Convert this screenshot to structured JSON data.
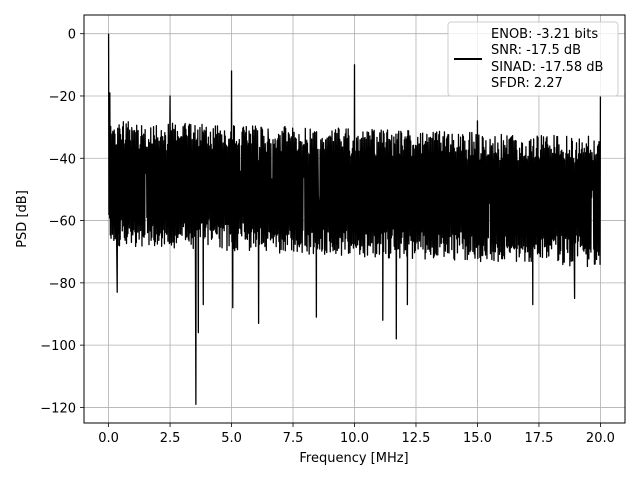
{
  "chart_data": {
    "type": "line",
    "title": "",
    "xlabel": "Frequency [MHz]",
    "ylabel": "PSD [dB]",
    "xlim": [
      -1.0,
      21.0
    ],
    "ylim": [
      -125,
      6
    ],
    "xticks": [
      0.0,
      2.5,
      5.0,
      7.5,
      10.0,
      12.5,
      15.0,
      17.5,
      20.0
    ],
    "xtick_labels": [
      "0.0",
      "2.5",
      "5.0",
      "7.5",
      "10.0",
      "12.5",
      "15.0",
      "17.5",
      "20.0"
    ],
    "yticks": [
      0,
      -20,
      -40,
      -60,
      -80,
      -100,
      -120
    ],
    "ytick_labels": [
      "0",
      "−20",
      "−40",
      "−60",
      "−80",
      "−100",
      "−120"
    ],
    "grid": true,
    "legend_position": "top-right",
    "series": [
      {
        "color": "#000000",
        "noise_floor": {
          "upper_envelope_db": [
            -28,
            -33
          ],
          "lower_envelope_db": [
            -68,
            -75
          ],
          "x_range": [
            0.0,
            20.0
          ]
        },
        "peaks": [
          {
            "x": 0.0,
            "y": 0
          },
          {
            "x": 0.05,
            "y": -19
          },
          {
            "x": 2.5,
            "y": -20
          },
          {
            "x": 5.0,
            "y": -12
          },
          {
            "x": 10.0,
            "y": -10
          },
          {
            "x": 15.0,
            "y": -28
          },
          {
            "x": 20.0,
            "y": -20
          }
        ],
        "dips": [
          {
            "x": 0.35,
            "y": -83
          },
          {
            "x": 3.55,
            "y": -119
          },
          {
            "x": 3.65,
            "y": -96
          },
          {
            "x": 3.85,
            "y": -87
          },
          {
            "x": 5.05,
            "y": -88
          },
          {
            "x": 6.1,
            "y": -93
          },
          {
            "x": 8.45,
            "y": -91
          },
          {
            "x": 11.15,
            "y": -92
          },
          {
            "x": 11.7,
            "y": -98
          },
          {
            "x": 12.15,
            "y": -87
          },
          {
            "x": 17.25,
            "y": -87
          },
          {
            "x": 18.95,
            "y": -85
          }
        ]
      }
    ],
    "legend_entries": [
      "ENOB: -3.21 bits",
      "SNR: -17.5 dB",
      "SINAD: -17.58 dB",
      "SFDR: 2.27"
    ]
  }
}
